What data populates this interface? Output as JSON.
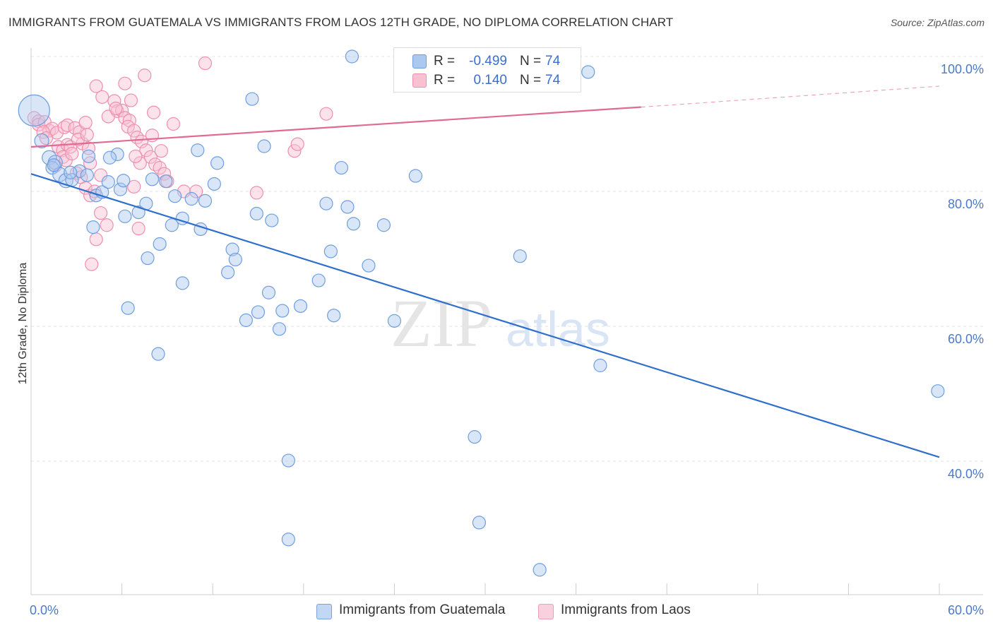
{
  "title": "IMMIGRANTS FROM GUATEMALA VS IMMIGRANTS FROM LAOS 12TH GRADE, NO DIPLOMA CORRELATION CHART",
  "source": "Source: ZipAtlas.com",
  "watermark": {
    "zip": "ZIP",
    "atlas": "atlas"
  },
  "legend_top": {
    "rows": [
      {
        "r_label": "R =",
        "r_value": "-0.499",
        "n_label": "N =",
        "n_value": "74",
        "color": "#aac8f0",
        "border": "#6f9ee0"
      },
      {
        "r_label": "R =",
        "r_value": "0.140",
        "n_label": "N =",
        "n_value": "74",
        "color": "#f9c0d2",
        "border": "#ee8fae"
      }
    ]
  },
  "legend_bottom": {
    "items": [
      {
        "label": "Immigrants from Guatemala",
        "color": "#c2d7f3",
        "border": "#7aa3e0"
      },
      {
        "label": "Immigrants from Laos",
        "color": "#f9d0dd",
        "border": "#ee9fba"
      }
    ]
  },
  "chart_data": {
    "type": "scatter",
    "title": "IMMIGRANTS FROM GUATEMALA VS IMMIGRANTS FROM LAOS 12TH GRADE, NO DIPLOMA CORRELATION CHART",
    "xlabel": "",
    "ylabel": "12th Grade, No Diploma",
    "xlim": [
      0,
      60
    ],
    "ylim": [
      20,
      104
    ],
    "x_tick_labels": [
      {
        "value": 0,
        "label": "0.0%"
      },
      {
        "value": 60,
        "label": "60.0%"
      }
    ],
    "y_tick_labels": [
      {
        "value": 100,
        "label": "100.0%"
      },
      {
        "value": 80,
        "label": "80.0%"
      },
      {
        "value": 60,
        "label": "60.0%"
      },
      {
        "value": 40,
        "label": "40.0%"
      }
    ],
    "x_minor_ticks": [
      0,
      6,
      12,
      18,
      24,
      30,
      36,
      42,
      48,
      54,
      60
    ],
    "grid": true,
    "legend_position": "top-center",
    "series": [
      {
        "name": "Immigrants from Guatemala",
        "color": "#6f9ee0",
        "fill": "#aac8f0",
        "trend": {
          "x": [
            0,
            60
          ],
          "y": [
            82.6,
            40.6
          ],
          "color": "#2f6fcc"
        },
        "points": [
          [
            0.2,
            92.0,
            22
          ],
          [
            0.7,
            87.5,
            10
          ],
          [
            1.2,
            85.0,
            10
          ],
          [
            1.6,
            84.3,
            10
          ],
          [
            1.4,
            83.5,
            9
          ],
          [
            1.9,
            82.5,
            10
          ],
          [
            2.3,
            81.6,
            10
          ],
          [
            3.2,
            83.0,
            9
          ],
          [
            2.7,
            81.7,
            9
          ],
          [
            3.8,
            85.2,
            9
          ],
          [
            4.3,
            79.4,
            9
          ],
          [
            4.7,
            79.9,
            9
          ],
          [
            5.1,
            81.4,
            9
          ],
          [
            5.7,
            85.5,
            9
          ],
          [
            5.9,
            80.3,
            9
          ],
          [
            6.1,
            81.6,
            9
          ],
          [
            4.1,
            74.7,
            9
          ],
          [
            6.2,
            76.3,
            9
          ],
          [
            7.1,
            76.9,
            9
          ],
          [
            7.6,
            78.2,
            9
          ],
          [
            8.0,
            81.8,
            9
          ],
          [
            8.9,
            81.5,
            9
          ],
          [
            9.3,
            75.0,
            9
          ],
          [
            9.5,
            79.3,
            9
          ],
          [
            10.0,
            76.0,
            9
          ],
          [
            10.6,
            78.9,
            9
          ],
          [
            11.2,
            74.4,
            9
          ],
          [
            11.5,
            78.6,
            9
          ],
          [
            12.1,
            81.1,
            9
          ],
          [
            12.3,
            84.2,
            9
          ],
          [
            11.0,
            86.1,
            9
          ],
          [
            8.5,
            72.2,
            9
          ],
          [
            7.7,
            70.1,
            9
          ],
          [
            10.0,
            66.4,
            9
          ],
          [
            6.4,
            62.7,
            9
          ],
          [
            8.4,
            55.9,
            9
          ],
          [
            13.0,
            68.0,
            9
          ],
          [
            13.3,
            71.4,
            9
          ],
          [
            13.5,
            69.9,
            9
          ],
          [
            14.2,
            60.9,
            9
          ],
          [
            14.6,
            93.7,
            9
          ],
          [
            14.9,
            76.7,
            9
          ],
          [
            15.4,
            86.7,
            9
          ],
          [
            15.7,
            65.0,
            9
          ],
          [
            15.9,
            75.7,
            9
          ],
          [
            16.6,
            62.3,
            9
          ],
          [
            15.0,
            62.1,
            9
          ],
          [
            16.4,
            59.6,
            9
          ],
          [
            17.0,
            40.1,
            9
          ],
          [
            17.8,
            63.0,
            9
          ],
          [
            19.0,
            66.8,
            9
          ],
          [
            19.5,
            78.2,
            9
          ],
          [
            19.8,
            71.1,
            9
          ],
          [
            20.0,
            61.6,
            9
          ],
          [
            20.5,
            83.5,
            9
          ],
          [
            20.9,
            77.7,
            9
          ],
          [
            21.3,
            75.2,
            9
          ],
          [
            21.2,
            100.0,
            9
          ],
          [
            22.3,
            69.0,
            9
          ],
          [
            23.3,
            75.0,
            9
          ],
          [
            24.0,
            60.8,
            9
          ],
          [
            25.4,
            82.3,
            9
          ],
          [
            17.0,
            28.4,
            9
          ],
          [
            29.3,
            43.6,
            9
          ],
          [
            29.6,
            30.9,
            9
          ],
          [
            32.3,
            70.4,
            9
          ],
          [
            33.6,
            23.9,
            9
          ],
          [
            36.8,
            97.7,
            9
          ],
          [
            37.6,
            54.2,
            9
          ],
          [
            59.9,
            50.4,
            9
          ],
          [
            3.7,
            82.4,
            9
          ],
          [
            2.6,
            82.8,
            9
          ],
          [
            5.2,
            85.0,
            9
          ],
          [
            1.5,
            83.9,
            9
          ]
        ]
      },
      {
        "name": "Immigrants from Laos",
        "color": "#ee8fae",
        "fill": "#f9c0d2",
        "trend": {
          "x": [
            0,
            40.3
          ],
          "y": [
            86.6,
            92.5
          ],
          "color": "#e06a93",
          "dash_to": [
            60,
            95.6
          ]
        },
        "points": [
          [
            0.2,
            90.9,
            9
          ],
          [
            0.5,
            90.4,
            9
          ],
          [
            0.5,
            89.9,
            9
          ],
          [
            0.9,
            90.3,
            9
          ],
          [
            1.2,
            89.0,
            9
          ],
          [
            1.4,
            89.3,
            9
          ],
          [
            0.8,
            88.8,
            9
          ],
          [
            1.7,
            88.7,
            9
          ],
          [
            1.0,
            87.9,
            9
          ],
          [
            1.8,
            86.6,
            9
          ],
          [
            2.1,
            86.1,
            9
          ],
          [
            2.4,
            86.9,
            9
          ],
          [
            2.1,
            85.1,
            9
          ],
          [
            2.3,
            84.6,
            9
          ],
          [
            2.6,
            86.6,
            9
          ],
          [
            2.2,
            89.5,
            9
          ],
          [
            2.4,
            89.8,
            9
          ],
          [
            2.9,
            89.4,
            9
          ],
          [
            3.2,
            88.8,
            9
          ],
          [
            3.6,
            90.2,
            9
          ],
          [
            3.4,
            87.1,
            9
          ],
          [
            3.8,
            86.4,
            9
          ],
          [
            3.9,
            84.2,
            9
          ],
          [
            3.0,
            82.7,
            9
          ],
          [
            3.3,
            82.1,
            9
          ],
          [
            3.6,
            80.5,
            9
          ],
          [
            3.9,
            79.4,
            9
          ],
          [
            4.2,
            80.0,
            9
          ],
          [
            4.6,
            76.8,
            9
          ],
          [
            4.0,
            69.2,
            9
          ],
          [
            4.3,
            72.9,
            9
          ],
          [
            5.0,
            75.0,
            9
          ],
          [
            4.7,
            94.0,
            9
          ],
          [
            5.5,
            93.4,
            9
          ],
          [
            5.7,
            91.9,
            9
          ],
          [
            6.0,
            92.0,
            9
          ],
          [
            5.1,
            91.1,
            9
          ],
          [
            6.2,
            90.9,
            9
          ],
          [
            6.5,
            90.5,
            9
          ],
          [
            6.4,
            89.6,
            9
          ],
          [
            6.8,
            89.0,
            9
          ],
          [
            7.0,
            88.0,
            9
          ],
          [
            7.3,
            87.4,
            9
          ],
          [
            7.6,
            86.1,
            9
          ],
          [
            7.9,
            85.1,
            9
          ],
          [
            8.2,
            84.0,
            9
          ],
          [
            8.5,
            83.5,
            9
          ],
          [
            8.8,
            82.6,
            9
          ],
          [
            7.2,
            84.2,
            9
          ],
          [
            6.8,
            80.7,
            9
          ],
          [
            7.1,
            74.5,
            9
          ],
          [
            7.5,
            97.2,
            9
          ],
          [
            8.1,
            91.7,
            9
          ],
          [
            8.6,
            86.0,
            9
          ],
          [
            9.0,
            81.5,
            9
          ],
          [
            9.4,
            90.0,
            9
          ],
          [
            10.1,
            80.0,
            9
          ],
          [
            10.9,
            80.0,
            9
          ],
          [
            11.5,
            99.0,
            9
          ],
          [
            14.9,
            79.8,
            9
          ],
          [
            17.4,
            86.0,
            9
          ],
          [
            17.6,
            87.0,
            9
          ],
          [
            19.5,
            91.5,
            9
          ],
          [
            6.6,
            93.5,
            9
          ],
          [
            6.2,
            96.0,
            9
          ],
          [
            4.3,
            95.6,
            9
          ],
          [
            3.1,
            87.7,
            9
          ],
          [
            2.7,
            85.6,
            9
          ],
          [
            1.6,
            83.8,
            9
          ],
          [
            3.7,
            88.4,
            9
          ],
          [
            5.6,
            92.3,
            9
          ],
          [
            4.6,
            82.4,
            9
          ],
          [
            6.9,
            85.2,
            9
          ],
          [
            8.0,
            88.3,
            9
          ]
        ]
      }
    ]
  }
}
